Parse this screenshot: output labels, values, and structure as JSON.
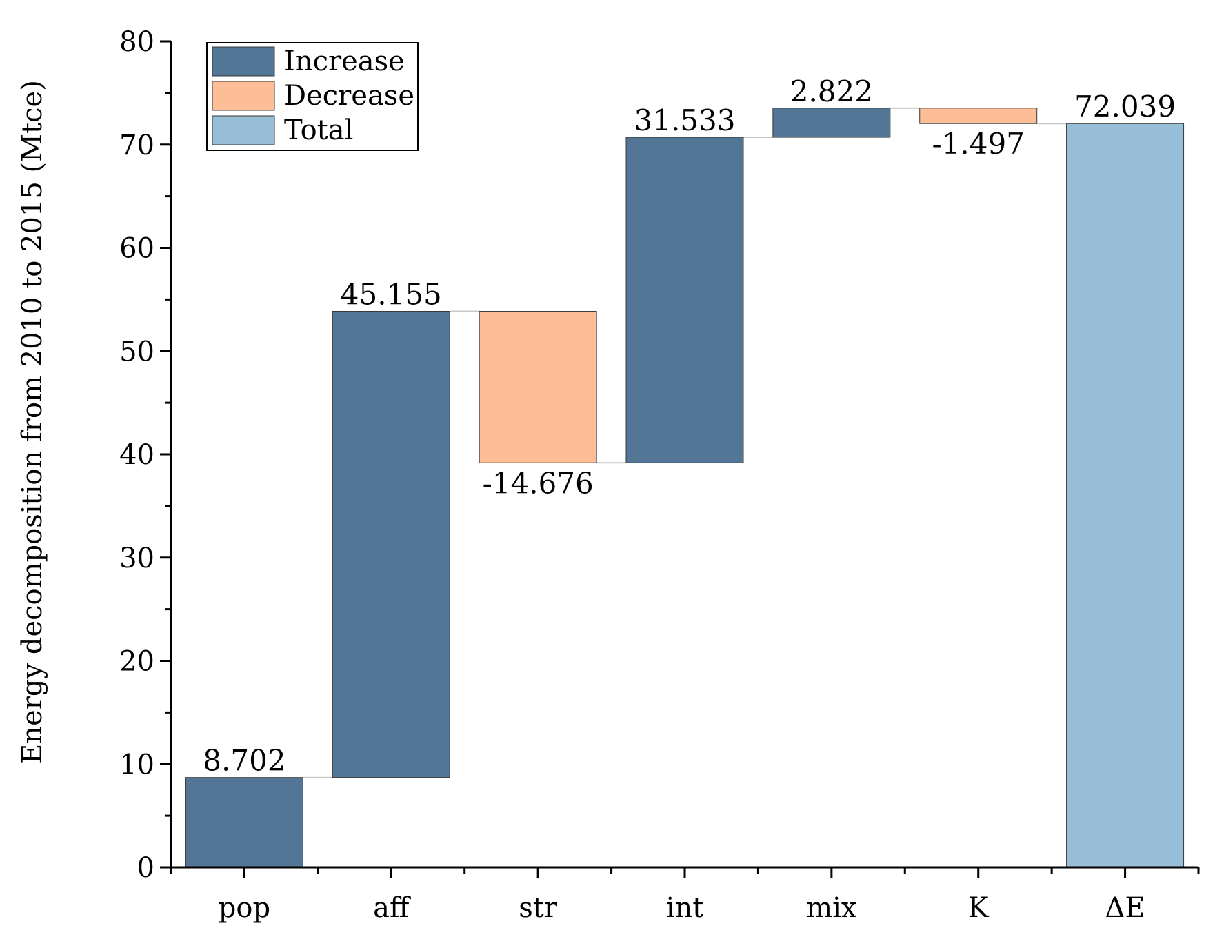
{
  "chart_data": {
    "type": "waterfall",
    "title": "",
    "xlabel": "",
    "ylabel": "Energy decomposition from 2010 to 2015 (Mtce)",
    "ylim": [
      0,
      80
    ],
    "yticks": [
      0,
      10,
      20,
      30,
      40,
      50,
      60,
      70,
      80
    ],
    "categories": [
      "pop",
      "aff",
      "str",
      "int",
      "mix",
      "K",
      "ΔE"
    ],
    "values": [
      8.702,
      45.155,
      -14.676,
      31.533,
      2.822,
      -1.497,
      72.039
    ],
    "value_labels": [
      "8.702",
      "45.155",
      "-14.676",
      "31.533",
      "2.822",
      "-1.497",
      "72.039"
    ],
    "bar_kinds": [
      "increase",
      "increase",
      "decrease",
      "increase",
      "increase",
      "decrease",
      "total"
    ],
    "legend": {
      "position": "top-left",
      "items": [
        {
          "key": "increase",
          "label": "Increase"
        },
        {
          "key": "decrease",
          "label": "Decrease"
        },
        {
          "key": "total",
          "label": "Total"
        }
      ]
    },
    "colors": {
      "increase": "#537596",
      "decrease": "#FCBD97",
      "total": "#97BDD7",
      "connector": "#c8c8c8",
      "axis": "#000000"
    }
  }
}
